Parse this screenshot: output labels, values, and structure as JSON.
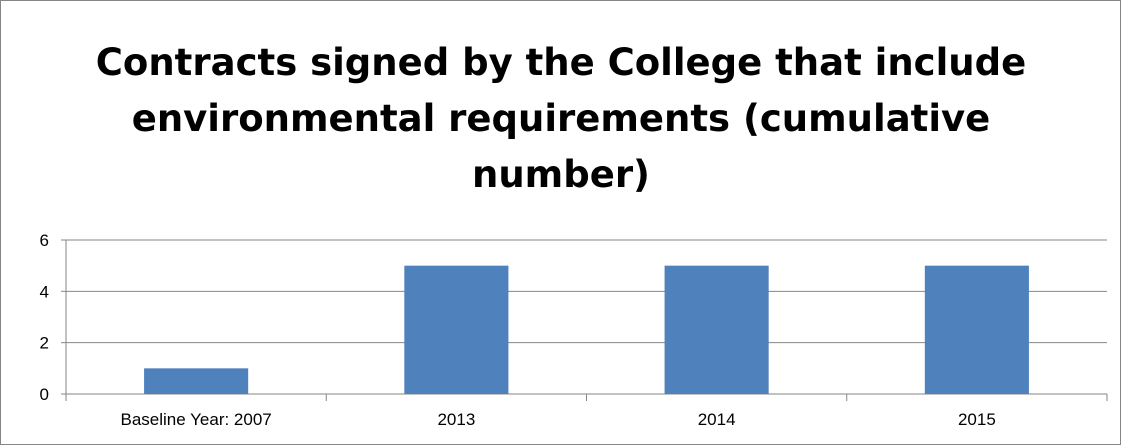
{
  "chart_data": {
    "type": "bar",
    "title": "Contracts signed by the College that include environmental requirements (cumulative number)",
    "categories": [
      "Baseline Year: 2007",
      "2013",
      "2014",
      "2015"
    ],
    "values": [
      1,
      5,
      5,
      5
    ],
    "ylim": [
      0,
      6
    ],
    "yticks": [
      "0",
      "2",
      "4",
      "6"
    ],
    "xlabel": "",
    "ylabel": "",
    "grid": true,
    "legend": "none",
    "bar_color": "#4f81bd"
  }
}
